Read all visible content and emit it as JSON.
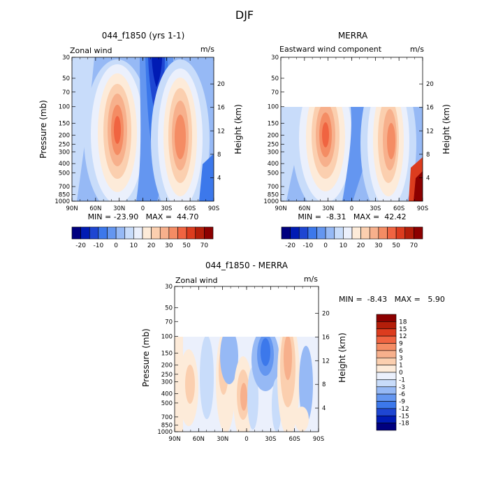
{
  "figure": {
    "title": "DJF"
  },
  "panels": [
    {
      "title": "044_f1850 (yrs 1-1)",
      "left_label": "Zonal wind",
      "right_label": "m/s",
      "stats": "MIN = -23.90   MAX =  44.70"
    },
    {
      "title": "MERRA",
      "left_label": "Eastward wind component",
      "right_label": "m/s",
      "stats": "MIN =  -8.31   MAX =  42.42"
    },
    {
      "title": "044_f1850 - MERRA",
      "left_label": "Zonal wind",
      "right_label": "m/s",
      "stats": "MIN =  -8.43   MAX =   5.90"
    }
  ],
  "axes": {
    "ylabel": "Pressure (mb)",
    "y2label": "Height (km)",
    "pressure_ticks": [
      "30",
      "50",
      "70",
      "100",
      "150",
      "200",
      "250",
      "300",
      "400",
      "500",
      "700",
      "850",
      "1000"
    ],
    "height_ticks_top": [
      "20",
      "16",
      "12",
      "8",
      "4"
    ],
    "height_ticks_bottom": [
      "20",
      "16",
      "12",
      "8",
      "4"
    ],
    "lat_ticks": [
      "90N",
      "60N",
      "30N",
      "0",
      "30S",
      "60S",
      "90S"
    ]
  },
  "colorbars": {
    "top_labels": [
      "-20",
      "-10",
      "0",
      "10",
      "20",
      "30",
      "50",
      "70"
    ],
    "top_colors": [
      "#00007f",
      "#001bb4",
      "#1e46d2",
      "#3c78eb",
      "#6496f0",
      "#96b9f5",
      "#c8dcfa",
      "#ebf0fc",
      "#fdebd9",
      "#fbcfaf",
      "#f7b08c",
      "#f48c64",
      "#f06441",
      "#dc3c1e",
      "#b41e0a",
      "#8c0000"
    ],
    "bottom_labels": [
      "18",
      "15",
      "12",
      "9",
      "6",
      "3",
      "1",
      "0",
      "-1",
      "-3",
      "-6",
      "-9",
      "-12",
      "-15",
      "-18"
    ],
    "bottom_colors": [
      "#8c0000",
      "#b41e0a",
      "#dc3c1e",
      "#f06441",
      "#f48c64",
      "#f7b08c",
      "#fbcfaf",
      "#fdebd9",
      "#ebf0fc",
      "#c8dcfa",
      "#96b9f5",
      "#6496f0",
      "#3c78eb",
      "#1e46d2",
      "#001bb4",
      "#00007f"
    ]
  },
  "chart_data": [
    {
      "type": "heatmap",
      "title": "044_f1850 (yrs 1-1)",
      "variable": "Zonal wind",
      "units": "m/s",
      "xlabel": "",
      "ylabel": "Pressure (mb)",
      "y2label": "Height (km)",
      "x_range": [
        "90N",
        "90S"
      ],
      "y_range_mb": [
        1000,
        30
      ],
      "min": -23.9,
      "max": 44.7,
      "features": [
        {
          "lat": 30,
          "pressure_mb": 200,
          "value": 44.7
        },
        {
          "lat": -50,
          "pressure_mb": 200,
          "value": 38
        },
        {
          "lat": 10,
          "pressure_mb": 30,
          "value": -23.9
        }
      ]
    },
    {
      "type": "heatmap",
      "title": "MERRA",
      "variable": "Eastward wind component",
      "units": "m/s",
      "ylabel": "Pressure (mb)",
      "y2label": "Height (km)",
      "x_range": [
        "90N",
        "90S"
      ],
      "y_range_mb": [
        1000,
        100
      ],
      "min": -8.31,
      "max": 42.42,
      "features": [
        {
          "lat": 30,
          "pressure_mb": 200,
          "value": 42.42
        },
        {
          "lat": -50,
          "pressure_mb": 200,
          "value": 36
        },
        {
          "lat": 5,
          "pressure_mb": 150,
          "value": -8.31
        }
      ]
    },
    {
      "type": "heatmap",
      "title": "044_f1850 - MERRA",
      "variable": "Zonal wind",
      "units": "m/s",
      "ylabel": "Pressure (mb)",
      "y2label": "Height (km)",
      "x_range": [
        "90N",
        "90S"
      ],
      "y_range_mb": [
        1000,
        100
      ],
      "min": -8.43,
      "max": 5.9,
      "features": [
        {
          "lat": -45,
          "pressure_mb": 200,
          "value": 5.9
        },
        {
          "lat": 3,
          "pressure_mb": 400,
          "value": 5
        },
        {
          "lat": -15,
          "pressure_mb": 150,
          "value": -8.43
        }
      ]
    }
  ]
}
